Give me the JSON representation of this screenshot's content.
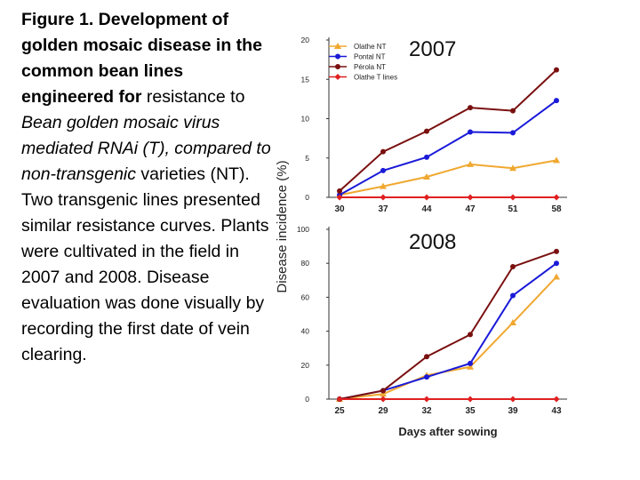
{
  "caption": {
    "bold": "Figure 1. Development of golden mosaic disease in the common bean lines engineered for",
    "plain1": "resistance to",
    "italic": "Bean golden mosaic virus mediated RNAi (T), compared to non-transgenic",
    "plain2": "varieties (NT). Two transgenic lines presented similar resistance curves. Plants were cultivated in the field in 2007 and 2008. Disease evaluation was done visually by recording the first date of vein clearing."
  },
  "chart_data": [
    {
      "type": "line",
      "title": "2007",
      "categories": [
        "30",
        "37",
        "44",
        "47",
        "51",
        "58"
      ],
      "ylim": [
        0,
        20
      ],
      "yticks": [
        "0",
        "5",
        "10",
        "15",
        "20"
      ],
      "series": [
        {
          "name": "Olathe NT",
          "color": "#f0a830",
          "marker": "triangle",
          "values": [
            0.3,
            1.4,
            2.6,
            4.2,
            3.7,
            4.7
          ]
        },
        {
          "name": "Pontal NT",
          "color": "#1a1ad8",
          "marker": "circle",
          "values": [
            0.3,
            3.4,
            5.1,
            8.3,
            8.2,
            12.3
          ]
        },
        {
          "name": "Pérola NT",
          "color": "#7a1010",
          "marker": "circle",
          "values": [
            0.8,
            5.8,
            8.4,
            11.4,
            11.0,
            16.2
          ]
        },
        {
          "name": "Olathe T lines",
          "color": "#e02020",
          "marker": "diamond",
          "values": [
            0,
            0,
            0,
            0,
            0,
            0
          ]
        }
      ]
    },
    {
      "type": "line",
      "title": "2008",
      "categories": [
        "25",
        "29",
        "32",
        "35",
        "39",
        "43"
      ],
      "ylim": [
        0,
        100
      ],
      "yticks": [
        "0",
        "20",
        "40",
        "60",
        "80",
        "100"
      ],
      "xlabel": "Days after sowing",
      "series": [
        {
          "name": "Olathe NT",
          "color": "#f0a830",
          "marker": "triangle",
          "values": [
            0,
            3,
            14,
            19,
            45,
            72
          ]
        },
        {
          "name": "Pontal NT",
          "color": "#1a1ad8",
          "marker": "circle",
          "values": [
            0,
            5,
            13,
            21,
            61,
            80
          ]
        },
        {
          "name": "Pérola NT",
          "color": "#7a1010",
          "marker": "circle",
          "values": [
            0,
            5,
            25,
            38,
            78,
            87
          ]
        },
        {
          "name": "Olathe T lines",
          "color": "#e02020",
          "marker": "diamond",
          "values": [
            0,
            0,
            0,
            0,
            0,
            0
          ]
        }
      ]
    }
  ],
  "ylabel": "Disease incidence (%)"
}
